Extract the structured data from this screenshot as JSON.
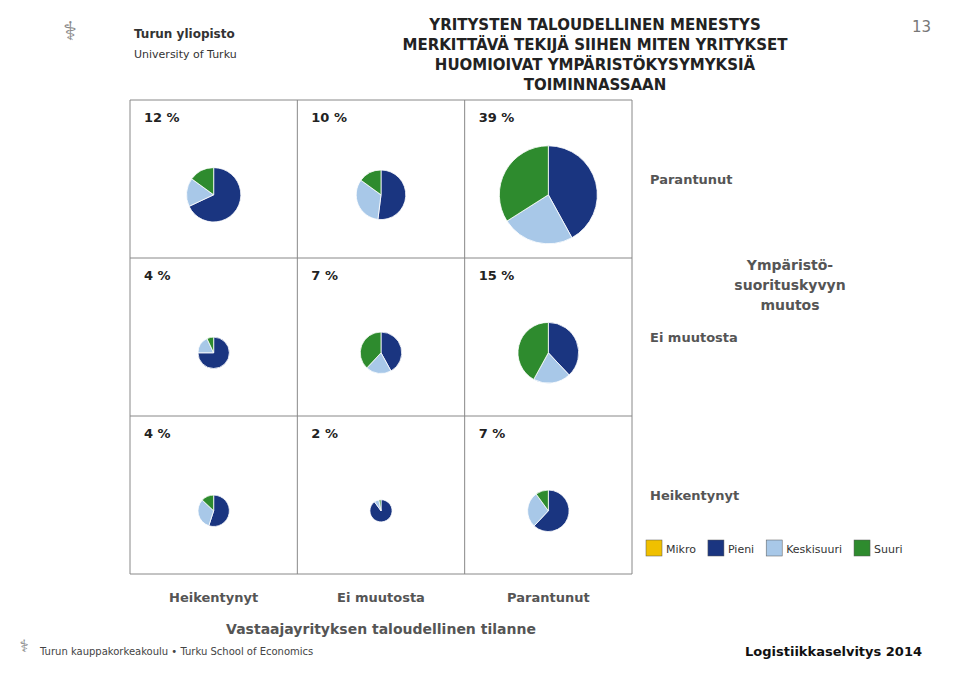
{
  "chart_data": {
    "type": "pie_grid",
    "title": "YRITYSTEN TALOUDELLINEN MENESTYS\nMERKITTÄVÄ TEKIJÄ SIIHEN MITEN YRITYKSET\nHUOMIOIVAT YMPÄRISTÖKYSYMYKSIÄ\nTOIMINNASSAAN",
    "x_label": "Vastaajayrityksen taloudellinen tilanne",
    "y_label": "Ympäristö-\nsuorituskyvyn\nmuutos",
    "x_categories": [
      "Heikentynyt",
      "Ei muutosta",
      "Parantunut"
    ],
    "y_categories": [
      "Parantunut",
      "Ei muutosta",
      "Heikentynyt"
    ],
    "values": [
      [
        12,
        10,
        39
      ],
      [
        4,
        7,
        15
      ],
      [
        4,
        2,
        7
      ]
    ],
    "value_labels": [
      [
        "12 %",
        "10 %",
        "39 %"
      ],
      [
        "4 %",
        "7 %",
        "15 %"
      ],
      [
        "4 %",
        "2 %",
        "7 %"
      ]
    ],
    "series": [
      {
        "name": "Mikro",
        "color": "#f0c000",
        "values": [
          [
            0,
            0,
            0
          ],
          [
            0,
            0,
            0
          ],
          [
            0,
            0,
            0
          ]
        ]
      },
      {
        "name": "Pieni",
        "color": "#1a3580",
        "values": [
          [
            68,
            52,
            42
          ],
          [
            75,
            42,
            38
          ],
          [
            55,
            90,
            62
          ]
        ]
      },
      {
        "name": "Keskisuuri",
        "color": "#a8c8e8",
        "values": [
          [
            17,
            33,
            24
          ],
          [
            18,
            20,
            20
          ],
          [
            32,
            7,
            28
          ]
        ]
      },
      {
        "name": "Suuri",
        "color": "#2e8b2e",
        "values": [
          [
            15,
            15,
            34
          ],
          [
            7,
            38,
            42
          ],
          [
            13,
            3,
            10
          ]
        ]
      }
    ],
    "legend": "right",
    "annotations": [
      "⚕",
      "Turun yliopisto",
      "University of Turku",
      "13",
      "Turun kauppakorkeakoulu • Turku School of Economics",
      "Logistiikkaselvitys 2014",
      "⚕"
    ]
  }
}
